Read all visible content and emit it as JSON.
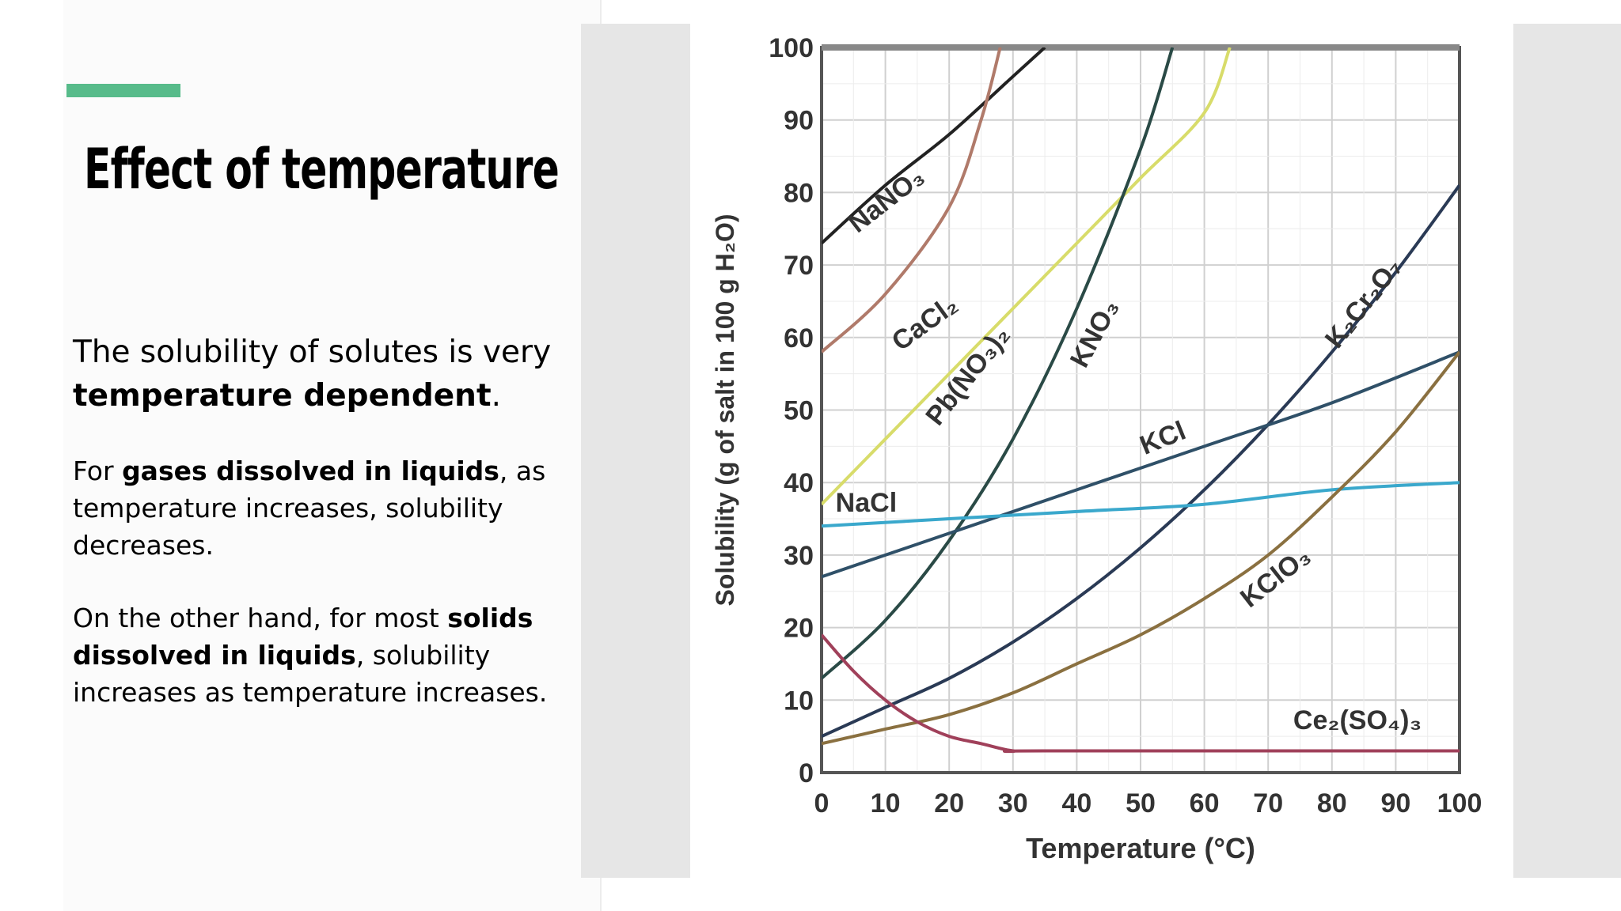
{
  "slide": {
    "title": "Effect of temperature",
    "accent_color": "#57bb8a",
    "p1": {
      "pre": "The solubility of solutes is very ",
      "bold": "temperature dependent",
      "post": "."
    },
    "p2": {
      "pre": "For ",
      "bold": "gases dissolved in liquids",
      "post": ", as temperature increases, solubility decreases."
    },
    "p3": {
      "pre": "On the other hand, for most ",
      "bold": "solids dissolved in liquids",
      "post": ", solubility increases as temperature increases."
    }
  },
  "chart_data": {
    "type": "line",
    "xlabel": "Temperature (°C)",
    "ylabel": "Solubility (g of salt in 100 g H₂O)",
    "xlim": [
      0,
      100
    ],
    "ylim": [
      0,
      100
    ],
    "xticks": [
      0,
      10,
      20,
      30,
      40,
      50,
      60,
      70,
      80,
      90,
      100
    ],
    "yticks": [
      0,
      10,
      20,
      30,
      40,
      50,
      60,
      70,
      80,
      90,
      100
    ],
    "grid": true,
    "series": [
      {
        "name": "NaNO₃",
        "color": "#222222",
        "x": [
          0,
          10,
          20,
          30,
          35
        ],
        "y": [
          73,
          81,
          88,
          96,
          100
        ]
      },
      {
        "name": "CaCl₂",
        "color": "#b07a6a",
        "x": [
          0,
          10,
          20,
          25,
          28
        ],
        "y": [
          58,
          66,
          78,
          90,
          100
        ]
      },
      {
        "name": "Pb(NO₃)₂",
        "color": "#d8dc6a",
        "x": [
          0,
          10,
          20,
          30,
          40,
          50,
          60,
          64
        ],
        "y": [
          37,
          46,
          55,
          64,
          73,
          82,
          91,
          100
        ]
      },
      {
        "name": "KNO₃",
        "color": "#2a4a46",
        "x": [
          0,
          10,
          20,
          30,
          40,
          50,
          55
        ],
        "y": [
          13,
          21,
          32,
          46,
          64,
          86,
          100
        ]
      },
      {
        "name": "K₂Cr₂O₇",
        "color": "#2a3a55",
        "x": [
          0,
          10,
          20,
          30,
          40,
          50,
          60,
          70,
          80,
          90,
          100
        ],
        "y": [
          5,
          9,
          13,
          18,
          24,
          31,
          39,
          48,
          58,
          69,
          81
        ]
      },
      {
        "name": "KCl",
        "color": "#2f5068",
        "x": [
          0,
          20,
          40,
          60,
          80,
          100
        ],
        "y": [
          27,
          33,
          39,
          45,
          51,
          58
        ]
      },
      {
        "name": "NaCl",
        "color": "#3aa8cc",
        "x": [
          0,
          20,
          40,
          60,
          80,
          100
        ],
        "y": [
          34,
          35,
          36,
          37,
          39,
          40
        ]
      },
      {
        "name": "KClO₃",
        "color": "#8a7040",
        "x": [
          0,
          10,
          20,
          30,
          40,
          50,
          60,
          70,
          80,
          90,
          100
        ],
        "y": [
          4,
          6,
          8,
          11,
          15,
          19,
          24,
          30,
          38,
          47,
          58
        ]
      },
      {
        "name": "Ce₂(SO₄)₃",
        "color": "#a0405a",
        "x": [
          0,
          5,
          10,
          15,
          20,
          25,
          30,
          35,
          100
        ],
        "y": [
          19,
          14,
          10,
          7,
          5,
          4,
          3,
          3,
          3
        ]
      }
    ]
  }
}
